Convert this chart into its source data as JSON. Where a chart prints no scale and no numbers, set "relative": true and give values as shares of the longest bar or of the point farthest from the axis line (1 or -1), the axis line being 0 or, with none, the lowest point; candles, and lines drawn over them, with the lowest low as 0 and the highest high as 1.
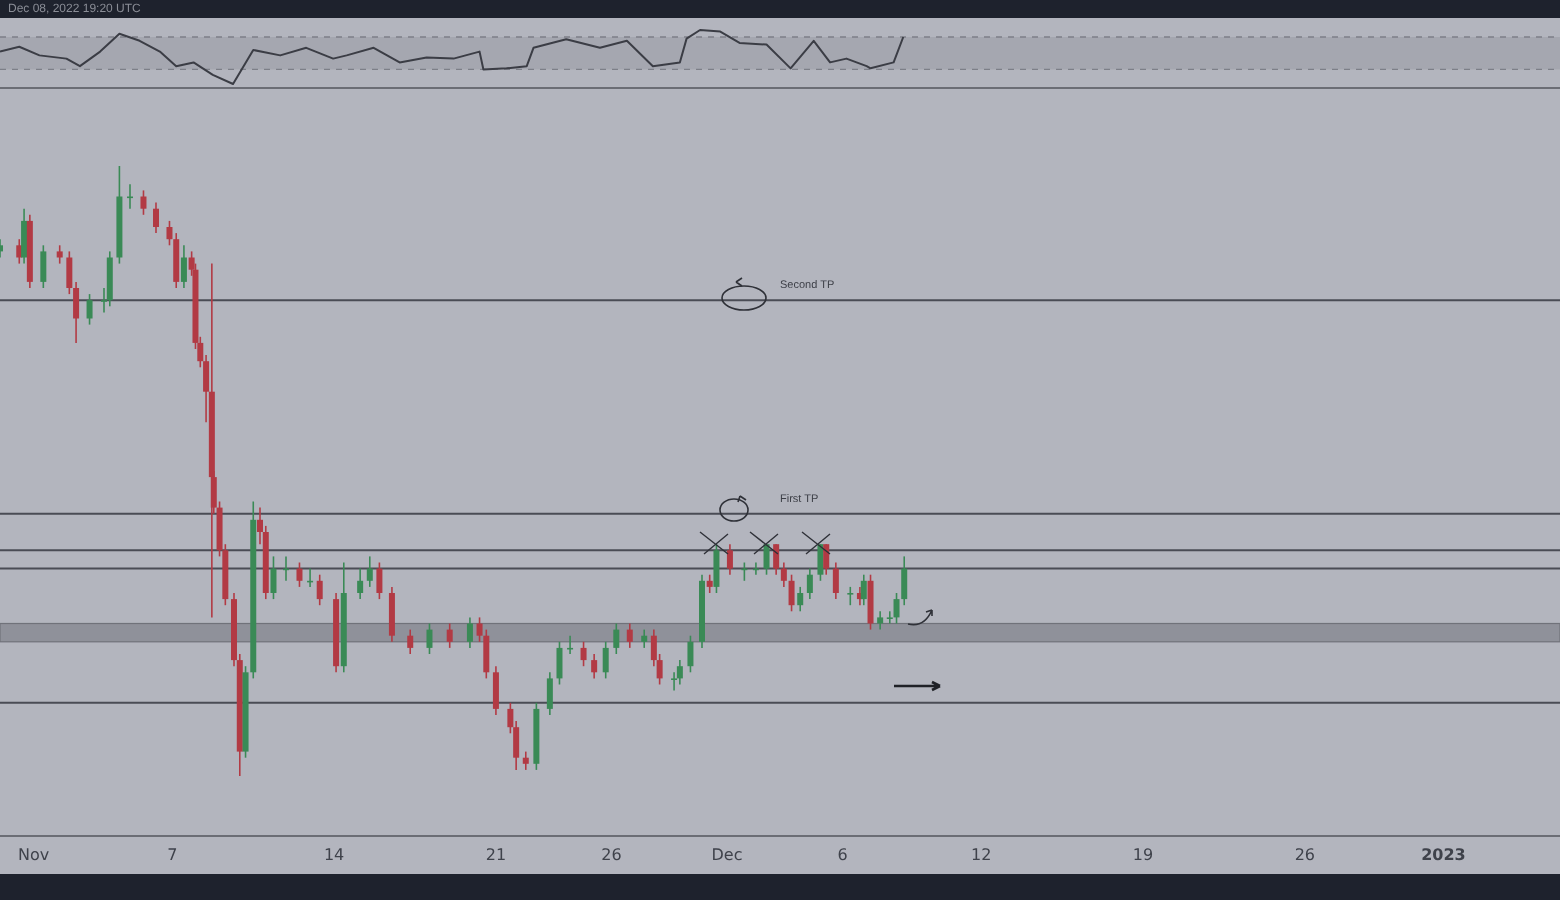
{
  "chart_data": [
    {
      "type": "line",
      "relative": true,
      "tick_labels": false,
      "annotations": [
        "Dec 08, 2022 19:20 UTC"
      ],
      "xlim": [
        "2022-10-30T13:00",
        "2023-01-06T01:00"
      ],
      "bands": [
        {
          "axis": "y",
          "from": 0.27,
          "to": 0.87,
          "color": "#a5a7b0"
        }
      ],
      "ref_lines": [
        {
          "axis": "y",
          "value": 0.87,
          "color": "#7d7f88",
          "line_style": "dashed"
        },
        {
          "axis": "y",
          "value": 0.27,
          "color": "#7d7f88",
          "line_style": "dashed"
        }
      ],
      "series": [
        {
          "color": "#3b3d45",
          "x": [
            "2022-10-30T13:00",
            "2022-10-31T09:00",
            "2022-11-01T06:00",
            "2022-11-02T10:00",
            "2022-11-03T00:00",
            "2022-11-03T21:00",
            "2022-11-04T17:00",
            "2022-11-05T14:00",
            "2022-11-06T11:00",
            "2022-11-07T04:00",
            "2022-11-07T22:00",
            "2022-11-08T18:00",
            "2022-11-09T15:00",
            "2022-11-10T12:00",
            "2022-11-11T16:00",
            "2022-11-12T19:00",
            "2022-11-13T23:00",
            "2022-11-14T13:00",
            "2022-11-15T17:00",
            "2022-11-16T20:00",
            "2022-11-18T00:00",
            "2022-11-19T04:00",
            "2022-11-20T07:00",
            "2022-11-20T11:00",
            "2022-11-21T11:00",
            "2022-11-22T08:00",
            "2022-11-22T15:00",
            "2022-11-24T01:00",
            "2022-11-25T12:00",
            "2022-11-26T16:00",
            "2022-11-27T19:00",
            "2022-11-28T23:00",
            "2022-11-29T06:00",
            "2022-11-29T20:00",
            "2022-11-30T17:00",
            "2022-12-01T13:00",
            "2022-12-02T17:00",
            "2022-12-03T18:00",
            "2022-12-04T18:00",
            "2022-12-05T11:00",
            "2022-12-06T04:00",
            "2022-12-07T01:00",
            "2022-12-07T05:00",
            "2022-12-08T05:00",
            "2022-12-08T15:00"
          ],
          "values": [
            0.6,
            0.69,
            0.53,
            0.47,
            0.33,
            0.6,
            0.93,
            0.8,
            0.6,
            0.33,
            0.4,
            0.17,
            0.0,
            0.63,
            0.53,
            0.67,
            0.47,
            0.53,
            0.67,
            0.4,
            0.49,
            0.47,
            0.6,
            0.27,
            0.29,
            0.33,
            0.67,
            0.83,
            0.67,
            0.8,
            0.33,
            0.4,
            0.84,
            1.0,
            0.97,
            0.76,
            0.73,
            0.29,
            0.8,
            0.4,
            0.47,
            0.33,
            0.29,
            0.4,
            0.87
          ]
        }
      ]
    },
    {
      "type": "candlestick",
      "relative": true,
      "tick_labels": "x",
      "xlim": [
        "2022-10-30T13:00",
        "2023-01-06T01:00"
      ],
      "xticks": [
        {
          "value": "2022-11-01",
          "label": "Nov"
        },
        {
          "value": "2022-11-07",
          "label": "7"
        },
        {
          "value": "2022-11-14",
          "label": "14"
        },
        {
          "value": "2022-11-21",
          "label": "21"
        },
        {
          "value": "2022-11-26",
          "label": "26"
        },
        {
          "value": "2022-12-01",
          "label": "Dec"
        },
        {
          "value": "2022-12-06",
          "label": "6"
        },
        {
          "value": "2022-12-12",
          "label": "12"
        },
        {
          "value": "2022-12-19",
          "label": "19"
        },
        {
          "value": "2022-12-26",
          "label": "26"
        },
        {
          "value": "2023-01-01",
          "label": "2023"
        }
      ],
      "ref_lines": [
        {
          "axis": "y",
          "value": 0.78,
          "label": "Second TP",
          "color": "#4a4c55"
        },
        {
          "axis": "y",
          "value": 0.43,
          "label": "First TP",
          "color": "#4a4c55"
        },
        {
          "axis": "y",
          "value": 0.37,
          "color": "#4a4c55"
        },
        {
          "axis": "y",
          "value": 0.34,
          "color": "#4a4c55"
        },
        {
          "axis": "y",
          "value": 0.12,
          "color": "#4a4c55"
        }
      ],
      "bands": [
        {
          "axis": "y",
          "from": 0.22,
          "to": 0.25,
          "color": "#8f919a"
        }
      ],
      "x": [
        "2022-10-30T13:00",
        "2022-10-31T09:00",
        "2022-10-31T14:00",
        "2022-10-31T20:00",
        "2022-11-01T10:00",
        "2022-11-02T03:00",
        "2022-11-02T13:00",
        "2022-11-02T20:00",
        "2022-11-03T10:00",
        "2022-11-04T01:00",
        "2022-11-04T07:00",
        "2022-11-04T17:00",
        "2022-11-05T04:00",
        "2022-11-05T18:00",
        "2022-11-06T07:00",
        "2022-11-06T21:00",
        "2022-11-07T04:00",
        "2022-11-07T12:00",
        "2022-11-07T20:00",
        "2022-11-08T00:00",
        "2022-11-08T05:00",
        "2022-11-08T11:00",
        "2022-11-08T17:00",
        "2022-11-08T19:00",
        "2022-11-09T01:00",
        "2022-11-09T07:00",
        "2022-11-09T16:00",
        "2022-11-09T22:00",
        "2022-11-10T04:00",
        "2022-11-10T12:00",
        "2022-11-10T19:00",
        "2022-11-11T01:00",
        "2022-11-11T09:00",
        "2022-11-11T22:00",
        "2022-11-12T12:00",
        "2022-11-12T23:00",
        "2022-11-13T09:00",
        "2022-11-14T02:00",
        "2022-11-14T10:00",
        "2022-11-15T03:00",
        "2022-11-15T13:00",
        "2022-11-15T23:00",
        "2022-11-16T12:00",
        "2022-11-17T07:00",
        "2022-11-18T03:00",
        "2022-11-19T00:00",
        "2022-11-19T21:00",
        "2022-11-20T07:00",
        "2022-11-20T14:00",
        "2022-11-21T00:00",
        "2022-11-21T15:00",
        "2022-11-21T21:00",
        "2022-11-22T07:00",
        "2022-11-22T18:00",
        "2022-11-23T08:00",
        "2022-11-23T18:00",
        "2022-11-24T05:00",
        "2022-11-24T19:00",
        "2022-11-25T06:00",
        "2022-11-25T18:00",
        "2022-11-26T05:00",
        "2022-11-26T19:00",
        "2022-11-27T10:00",
        "2022-11-27T20:00",
        "2022-11-28T02:00",
        "2022-11-28T17:00",
        "2022-11-28T23:00",
        "2022-11-29T10:00",
        "2022-11-29T22:00",
        "2022-11-30T06:00",
        "2022-11-30T13:00",
        "2022-12-01T03:00",
        "2022-12-01T18:00",
        "2022-12-02T06:00",
        "2022-12-02T17:00",
        "2022-12-03T03:00",
        "2022-12-03T11:00",
        "2022-12-03T19:00",
        "2022-12-04T04:00",
        "2022-12-04T14:00",
        "2022-12-05T01:00",
        "2022-12-05T07:00",
        "2022-12-05T17:00",
        "2022-12-06T08:00",
        "2022-12-06T18:00",
        "2022-12-06T22:00",
        "2022-12-07T05:00",
        "2022-12-07T15:00",
        "2022-12-08T01:00",
        "2022-12-08T08:00",
        "2022-12-08T16:00"
      ],
      "ohlc": [
        [
          0.86,
          0.88,
          0.85,
          0.87
        ],
        [
          0.87,
          0.88,
          0.84,
          0.85
        ],
        [
          0.85,
          0.93,
          0.84,
          0.91
        ],
        [
          0.91,
          0.92,
          0.8,
          0.81
        ],
        [
          0.81,
          0.87,
          0.8,
          0.86
        ],
        [
          0.86,
          0.87,
          0.84,
          0.85
        ],
        [
          0.85,
          0.86,
          0.79,
          0.8
        ],
        [
          0.8,
          0.81,
          0.71,
          0.75
        ],
        [
          0.75,
          0.79,
          0.74,
          0.78
        ],
        [
          0.78,
          0.8,
          0.76,
          0.78
        ],
        [
          0.78,
          0.86,
          0.77,
          0.85
        ],
        [
          0.85,
          1.0,
          0.84,
          0.95
        ],
        [
          0.95,
          0.97,
          0.93,
          0.95
        ],
        [
          0.95,
          0.96,
          0.92,
          0.93
        ],
        [
          0.93,
          0.94,
          0.89,
          0.9
        ],
        [
          0.9,
          0.91,
          0.87,
          0.88
        ],
        [
          0.88,
          0.89,
          0.8,
          0.81
        ],
        [
          0.81,
          0.87,
          0.8,
          0.85
        ],
        [
          0.85,
          0.86,
          0.82,
          0.83
        ],
        [
          0.83,
          0.84,
          0.7,
          0.71
        ],
        [
          0.71,
          0.72,
          0.67,
          0.68
        ],
        [
          0.68,
          0.69,
          0.58,
          0.63
        ],
        [
          0.63,
          0.84,
          0.26,
          0.49
        ],
        [
          0.49,
          0.5,
          0.43,
          0.44
        ],
        [
          0.44,
          0.45,
          0.36,
          0.37
        ],
        [
          0.37,
          0.38,
          0.28,
          0.29
        ],
        [
          0.29,
          0.3,
          0.18,
          0.19
        ],
        [
          0.19,
          0.2,
          0.0,
          0.04
        ],
        [
          0.04,
          0.18,
          0.03,
          0.17
        ],
        [
          0.17,
          0.45,
          0.16,
          0.42
        ],
        [
          0.42,
          0.44,
          0.38,
          0.4
        ],
        [
          0.4,
          0.41,
          0.29,
          0.3
        ],
        [
          0.3,
          0.36,
          0.29,
          0.34
        ],
        [
          0.34,
          0.36,
          0.32,
          0.34
        ],
        [
          0.34,
          0.35,
          0.31,
          0.32
        ],
        [
          0.32,
          0.34,
          0.31,
          0.32
        ],
        [
          0.32,
          0.33,
          0.28,
          0.29
        ],
        [
          0.29,
          0.3,
          0.17,
          0.18
        ],
        [
          0.18,
          0.35,
          0.17,
          0.3
        ],
        [
          0.3,
          0.34,
          0.29,
          0.32
        ],
        [
          0.32,
          0.36,
          0.31,
          0.34
        ],
        [
          0.34,
          0.35,
          0.29,
          0.3
        ],
        [
          0.3,
          0.31,
          0.22,
          0.23
        ],
        [
          0.23,
          0.24,
          0.2,
          0.21
        ],
        [
          0.21,
          0.25,
          0.2,
          0.24
        ],
        [
          0.24,
          0.25,
          0.21,
          0.22
        ],
        [
          0.22,
          0.26,
          0.21,
          0.25
        ],
        [
          0.25,
          0.26,
          0.22,
          0.23
        ],
        [
          0.23,
          0.24,
          0.16,
          0.17
        ],
        [
          0.17,
          0.18,
          0.1,
          0.11
        ],
        [
          0.11,
          0.12,
          0.07,
          0.08
        ],
        [
          0.08,
          0.09,
          0.01,
          0.03
        ],
        [
          0.03,
          0.04,
          0.01,
          0.02
        ],
        [
          0.02,
          0.12,
          0.01,
          0.11
        ],
        [
          0.11,
          0.17,
          0.1,
          0.16
        ],
        [
          0.16,
          0.22,
          0.15,
          0.21
        ],
        [
          0.21,
          0.23,
          0.2,
          0.21
        ],
        [
          0.21,
          0.22,
          0.18,
          0.19
        ],
        [
          0.19,
          0.2,
          0.16,
          0.17
        ],
        [
          0.17,
          0.22,
          0.16,
          0.21
        ],
        [
          0.21,
          0.25,
          0.2,
          0.24
        ],
        [
          0.24,
          0.25,
          0.21,
          0.22
        ],
        [
          0.22,
          0.24,
          0.21,
          0.23
        ],
        [
          0.23,
          0.24,
          0.18,
          0.19
        ],
        [
          0.19,
          0.2,
          0.15,
          0.16
        ],
        [
          0.16,
          0.17,
          0.14,
          0.16
        ],
        [
          0.16,
          0.19,
          0.15,
          0.18
        ],
        [
          0.18,
          0.23,
          0.17,
          0.22
        ],
        [
          0.22,
          0.33,
          0.21,
          0.32
        ],
        [
          0.32,
          0.33,
          0.3,
          0.31
        ],
        [
          0.31,
          0.38,
          0.3,
          0.37
        ],
        [
          0.37,
          0.38,
          0.33,
          0.34
        ],
        [
          0.34,
          0.35,
          0.32,
          0.34
        ],
        [
          0.34,
          0.35,
          0.33,
          0.34
        ],
        [
          0.34,
          0.38,
          0.33,
          0.38
        ],
        [
          0.38,
          0.38,
          0.33,
          0.34
        ],
        [
          0.34,
          0.35,
          0.31,
          0.32
        ],
        [
          0.32,
          0.33,
          0.27,
          0.28
        ],
        [
          0.28,
          0.31,
          0.27,
          0.3
        ],
        [
          0.3,
          0.34,
          0.29,
          0.33
        ],
        [
          0.33,
          0.38,
          0.32,
          0.38
        ],
        [
          0.38,
          0.38,
          0.33,
          0.34
        ],
        [
          0.34,
          0.35,
          0.29,
          0.3
        ],
        [
          0.3,
          0.31,
          0.28,
          0.3
        ],
        [
          0.3,
          0.31,
          0.28,
          0.29
        ],
        [
          0.29,
          0.33,
          0.28,
          0.32
        ],
        [
          0.32,
          0.33,
          0.24,
          0.25
        ],
        [
          0.25,
          0.27,
          0.24,
          0.26
        ],
        [
          0.26,
          0.27,
          0.25,
          0.26
        ],
        [
          0.26,
          0.3,
          0.25,
          0.29
        ],
        [
          0.29,
          0.36,
          0.28,
          0.34
        ]
      ]
    }
  ]
}
